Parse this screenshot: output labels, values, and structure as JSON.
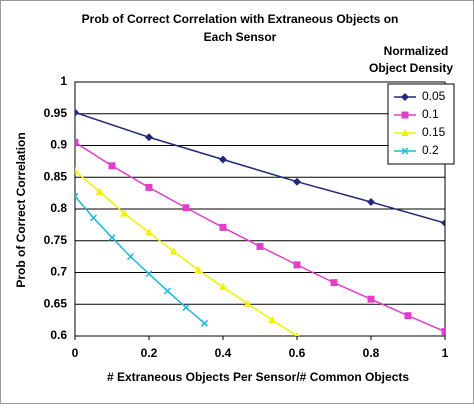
{
  "chart_data": {
    "type": "line",
    "title": [
      "Prob of Correct Correlation with Extraneous Objects on",
      "Each Sensor"
    ],
    "xlabel": "# Extraneous Objects Per Sensor/# Common Objects",
    "ylabel": "Prob of Correct Correlation",
    "legend_title": [
      "Normalized",
      "Object Density"
    ],
    "legend": "upper right",
    "grid": true,
    "xlim": [
      0,
      1
    ],
    "xticks": [
      0,
      0.2,
      0.4,
      0.6,
      0.8,
      1
    ],
    "ylim": [
      0.6,
      1
    ],
    "yticks": [
      0.6,
      0.65,
      0.7,
      0.75,
      0.8,
      0.85,
      0.9,
      0.95,
      1
    ],
    "series": [
      {
        "name": "0.05",
        "color": "#1f2a7a",
        "marker": "diamond",
        "x": [
          0,
          0.2,
          0.4,
          0.6,
          0.8,
          1
        ],
        "values": [
          0.952,
          0.913,
          0.878,
          0.843,
          0.811,
          0.778
        ]
      },
      {
        "name": "0.1",
        "color": "#e040c8",
        "marker": "square",
        "x": [
          0,
          0.1,
          0.2,
          0.3,
          0.4,
          0.5,
          0.6,
          0.7,
          0.8,
          0.9,
          1
        ],
        "values": [
          0.905,
          0.868,
          0.834,
          0.802,
          0.771,
          0.741,
          0.712,
          0.684,
          0.658,
          0.632,
          0.607
        ]
      },
      {
        "name": "0.15",
        "color": "#f0f000",
        "marker": "triangle",
        "x": [
          0,
          0.0667,
          0.1333,
          0.2,
          0.2667,
          0.3333,
          0.4,
          0.4667,
          0.5333,
          0.6
        ],
        "values": [
          0.86,
          0.827,
          0.793,
          0.763,
          0.733,
          0.704,
          0.677,
          0.651,
          0.625,
          0.6
        ]
      },
      {
        "name": "0.2",
        "color": "#20b8d8",
        "marker": "x",
        "x": [
          0,
          0.05,
          0.1,
          0.15,
          0.2,
          0.25,
          0.3,
          0.35
        ],
        "values": [
          0.82,
          0.786,
          0.755,
          0.725,
          0.698,
          0.671,
          0.645,
          0.62
        ]
      }
    ]
  }
}
